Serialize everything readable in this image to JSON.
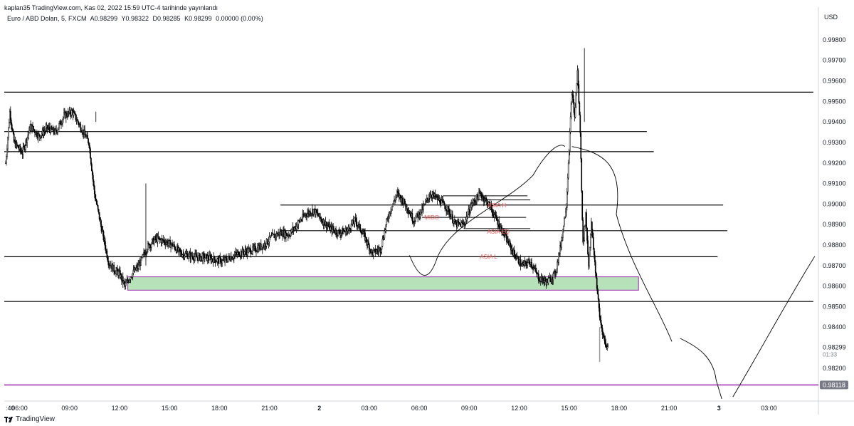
{
  "header": {
    "published": "kaplan35 TradingView.com, Kas 02, 2022 15:59 UTC-4 tarihinde yayınlandı",
    "symbol": "Euro / ABD Doları, 5, FXCM",
    "open": "A0.98299",
    "high": "Y0.98322",
    "low": "D0.98285",
    "close": "K0.98299",
    "change": "0.00000 (0.00%)"
  },
  "currency": "USD",
  "last_price": "0.98299",
  "countdown": "01:33",
  "marked_price": "0.98118",
  "footer": {
    "brand": "TradingView"
  },
  "colors": {
    "candle": "#000000",
    "zone_fill": "#b7e1b9",
    "zone_border": "#9c27b0",
    "level_line": "#000000",
    "purple_line": "#9c27b0",
    "annotation_text": "#ef5350",
    "marked_price_bg": "#787b86"
  },
  "annotations": [
    "ASIA H",
    "MIDO",
    "ASIA EQ",
    "ASIA L"
  ],
  "chart_data": {
    "type": "candlestick",
    "symbol": "EURUSD",
    "interval": "5",
    "ylabel": "USD",
    "ylim": [
      0.9805,
      0.9989
    ],
    "y_ticks": [
      0.982,
      0.984,
      0.985,
      0.986,
      0.987,
      0.988,
      0.989,
      0.99,
      0.991,
      0.992,
      0.993,
      0.994,
      0.995,
      0.996,
      0.997,
      0.998
    ],
    "y_tick_labels": [
      "0.98200",
      "0.98400",
      "0.98500",
      "0.98600",
      "0.98700",
      "0.98800",
      "0.98900",
      "0.99000",
      "0.99100",
      "0.99200",
      "0.99300",
      "0.99400",
      "0.99500",
      "0.99600",
      "0.99700",
      "0.99800"
    ],
    "x_ticks": [
      {
        "label": ":40",
        "x": 0
      },
      {
        "label": "06:00",
        "x": 10
      },
      {
        "label": "09:00",
        "x": 46
      },
      {
        "label": "12:00",
        "x": 82
      },
      {
        "label": "15:00",
        "x": 118
      },
      {
        "label": "18:00",
        "x": 154
      },
      {
        "label": "21:00",
        "x": 190
      },
      {
        "label": "2",
        "x": 226
      },
      {
        "label": "03:00",
        "x": 262
      },
      {
        "label": "06:00",
        "x": 298
      },
      {
        "label": "09:00",
        "x": 334
      },
      {
        "label": "12:00",
        "x": 370
      },
      {
        "label": "15:00",
        "x": 406
      },
      {
        "label": "18:00",
        "x": 442
      },
      {
        "label": "21:00",
        "x": 478
      },
      {
        "label": "3",
        "x": 514
      },
      {
        "label": "03:00",
        "x": 550
      }
    ],
    "price_path": [
      [
        0,
        0.992
      ],
      [
        3,
        0.9945
      ],
      [
        6,
        0.993
      ],
      [
        12,
        0.9925
      ],
      [
        18,
        0.9938
      ],
      [
        24,
        0.9933
      ],
      [
        30,
        0.9937
      ],
      [
        36,
        0.9935
      ],
      [
        42,
        0.9943
      ],
      [
        48,
        0.9945
      ],
      [
        52,
        0.994
      ],
      [
        56,
        0.9935
      ],
      [
        60,
        0.993
      ],
      [
        64,
        0.9905
      ],
      [
        70,
        0.9885
      ],
      [
        74,
        0.9872
      ],
      [
        78,
        0.9868
      ],
      [
        82,
        0.9866
      ],
      [
        86,
        0.986
      ],
      [
        90,
        0.9865
      ],
      [
        96,
        0.987
      ],
      [
        102,
        0.9879
      ],
      [
        108,
        0.9883
      ],
      [
        114,
        0.9882
      ],
      [
        120,
        0.988
      ],
      [
        126,
        0.9876
      ],
      [
        132,
        0.9875
      ],
      [
        138,
        0.9874
      ],
      [
        144,
        0.9874
      ],
      [
        150,
        0.9873
      ],
      [
        156,
        0.9872
      ],
      [
        162,
        0.9874
      ],
      [
        168,
        0.9876
      ],
      [
        174,
        0.9877
      ],
      [
        180,
        0.9878
      ],
      [
        186,
        0.988
      ],
      [
        192,
        0.9884
      ],
      [
        198,
        0.9886
      ],
      [
        204,
        0.9885
      ],
      [
        210,
        0.989
      ],
      [
        216,
        0.9895
      ],
      [
        222,
        0.9897
      ],
      [
        228,
        0.9892
      ],
      [
        234,
        0.9888
      ],
      [
        240,
        0.9886
      ],
      [
        246,
        0.9887
      ],
      [
        252,
        0.9892
      ],
      [
        258,
        0.9885
      ],
      [
        264,
        0.9876
      ],
      [
        270,
        0.9878
      ],
      [
        276,
        0.9895
      ],
      [
        282,
        0.9905
      ],
      [
        288,
        0.99
      ],
      [
        294,
        0.9892
      ],
      [
        300,
        0.9897
      ],
      [
        306,
        0.9905
      ],
      [
        312,
        0.9902
      ],
      [
        318,
        0.9898
      ],
      [
        324,
        0.989
      ],
      [
        330,
        0.989
      ],
      [
        336,
        0.99
      ],
      [
        342,
        0.9905
      ],
      [
        348,
        0.99
      ],
      [
        354,
        0.9892
      ],
      [
        360,
        0.9884
      ],
      [
        366,
        0.9876
      ],
      [
        372,
        0.987
      ],
      [
        378,
        0.9872
      ],
      [
        384,
        0.9864
      ],
      [
        390,
        0.9862
      ],
      [
        396,
        0.9866
      ],
      [
        400,
        0.988
      ],
      [
        404,
        0.99
      ],
      [
        408,
        0.9955
      ],
      [
        410,
        0.9942
      ],
      [
        412,
        0.9965
      ],
      [
        414,
        0.9935
      ],
      [
        416,
        0.988
      ],
      [
        418,
        0.9895
      ],
      [
        420,
        0.987
      ],
      [
        422,
        0.989
      ],
      [
        424,
        0.9875
      ],
      [
        426,
        0.986
      ],
      [
        428,
        0.9845
      ],
      [
        430,
        0.9838
      ],
      [
        432,
        0.9832
      ],
      [
        434,
        0.983
      ]
    ],
    "horizontal_levels": [
      0.99545,
      0.99353,
      0.99255,
      0.98995,
      0.9887,
      0.98743,
      0.98525,
      0.98118
    ],
    "demand_zone": [
      0.9858,
      0.98645
    ]
  }
}
